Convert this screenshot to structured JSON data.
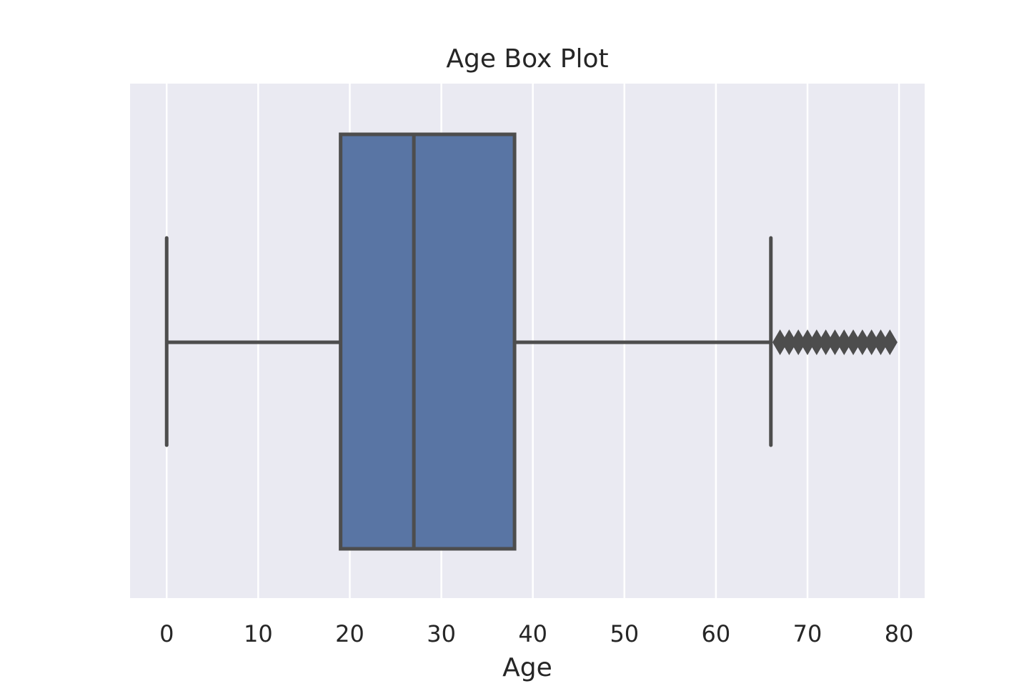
{
  "chart_data": {
    "type": "box",
    "title": "Age Box Plot",
    "xlabel": "Age",
    "ylabel": "",
    "xlim": [
      -4,
      82.8
    ],
    "xticks": [
      0,
      10,
      20,
      30,
      40,
      50,
      60,
      70,
      80
    ],
    "xtick_labels": [
      "0",
      "10",
      "20",
      "30",
      "40",
      "50",
      "60",
      "70",
      "80"
    ],
    "grid": true,
    "orientation": "horizontal",
    "box": {
      "whisker_low": 0,
      "q1": 19,
      "median": 27,
      "q3": 38,
      "whisker_high": 66
    },
    "outliers": [
      67,
      68,
      69,
      70,
      71,
      72,
      73,
      74,
      75,
      76,
      77,
      78,
      79
    ],
    "colors": {
      "plot_background": "#eaeaf2",
      "grid": "#ffffff",
      "box_fill": "#5975a4",
      "line": "#4d4d4d"
    }
  }
}
